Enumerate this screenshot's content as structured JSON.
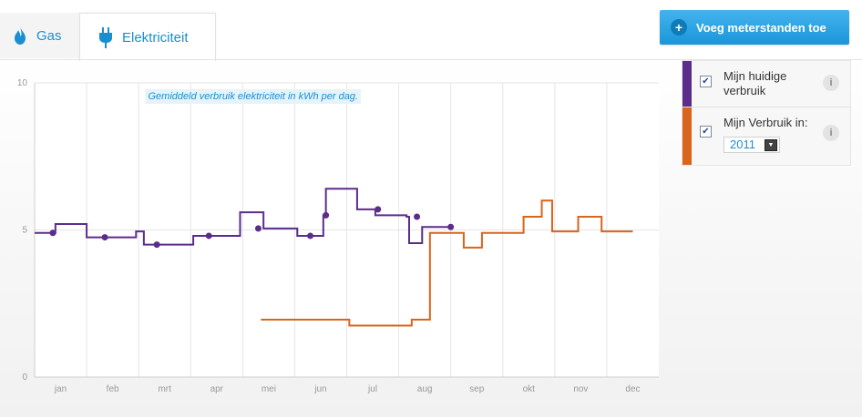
{
  "tabs": [
    {
      "label": "Gas",
      "icon": "flame-icon",
      "active": false
    },
    {
      "label": "Elektriciteit",
      "icon": "plug-icon",
      "active": true
    }
  ],
  "add_button": {
    "label": "Voeg meterstanden toe",
    "icon": "plus-icon"
  },
  "legend": {
    "items": [
      {
        "label": "Mijn huidige verbruik",
        "checked": true,
        "color": "#5b2d8a",
        "info": "i"
      },
      {
        "label": "Mijn Verbruik in:",
        "checked": true,
        "color": "#d9641b",
        "year": "2011",
        "info": "i"
      }
    ]
  },
  "colors": {
    "accent": "#1a8fd0",
    "current": "#5b2d8a",
    "compare": "#d9641b"
  },
  "chart_data": {
    "type": "line",
    "title": "Gemiddeld verbruik elektriciteit in kWh per dag.",
    "ylim": [
      0,
      10
    ],
    "yticks": [
      "0",
      "5",
      "10"
    ],
    "xlabels": [
      "jan",
      "feb",
      "mrt",
      "apr",
      "mei",
      "jun",
      "jul",
      "aug",
      "sep",
      "okt",
      "nov",
      "dec"
    ],
    "grid": true,
    "series": [
      {
        "name": "Mijn huidige verbruik",
        "step": true,
        "x": [
          0,
          0.35,
          0.4,
          0.92,
          1.0,
          1.4,
          1.95,
          2.0,
          2.1,
          3.0,
          3.05,
          3.6,
          3.9,
          3.95,
          4.35,
          4.4,
          5.0,
          5.05,
          5.1,
          5.2,
          5.5,
          5.55,
          5.6,
          5.85,
          6.2,
          6.5,
          6.55,
          6.95,
          7.15,
          7.2,
          7.4,
          7.45,
          7.95
        ],
        "y": [
          4.9,
          4.9,
          5.2,
          5.2,
          4.75,
          4.75,
          4.95,
          4.95,
          4.5,
          4.5,
          4.8,
          4.8,
          4.8,
          5.6,
          5.6,
          5.05,
          5.05,
          4.8,
          4.8,
          4.8,
          4.8,
          5.5,
          6.4,
          6.4,
          5.7,
          5.7,
          5.5,
          5.5,
          5.45,
          4.55,
          4.55,
          5.1,
          5.1
        ],
        "markers": [
          {
            "x": 0.35,
            "y": 4.9
          },
          {
            "x": 1.35,
            "y": 4.75
          },
          {
            "x": 2.35,
            "y": 4.5
          },
          {
            "x": 3.35,
            "y": 4.8
          },
          {
            "x": 4.3,
            "y": 5.05
          },
          {
            "x": 5.3,
            "y": 4.8
          },
          {
            "x": 5.6,
            "y": 5.5
          },
          {
            "x": 6.6,
            "y": 5.7
          },
          {
            "x": 7.35,
            "y": 5.45
          },
          {
            "x": 8.0,
            "y": 5.1
          }
        ]
      },
      {
        "name": "2011",
        "step": true,
        "x": [
          4.35,
          5.95,
          6.05,
          7.15,
          7.25,
          7.55,
          7.6,
          8.2,
          8.25,
          8.55,
          8.6,
          9.35,
          9.4,
          9.7,
          9.75,
          9.9,
          9.95,
          10.4,
          10.45,
          10.85,
          10.9,
          11.5
        ],
        "y": [
          1.95,
          1.95,
          1.75,
          1.75,
          1.95,
          1.95,
          4.9,
          4.9,
          4.4,
          4.4,
          4.9,
          4.9,
          5.45,
          5.45,
          6.0,
          6.0,
          4.95,
          4.95,
          5.45,
          5.45,
          4.95,
          4.95
        ]
      }
    ]
  }
}
